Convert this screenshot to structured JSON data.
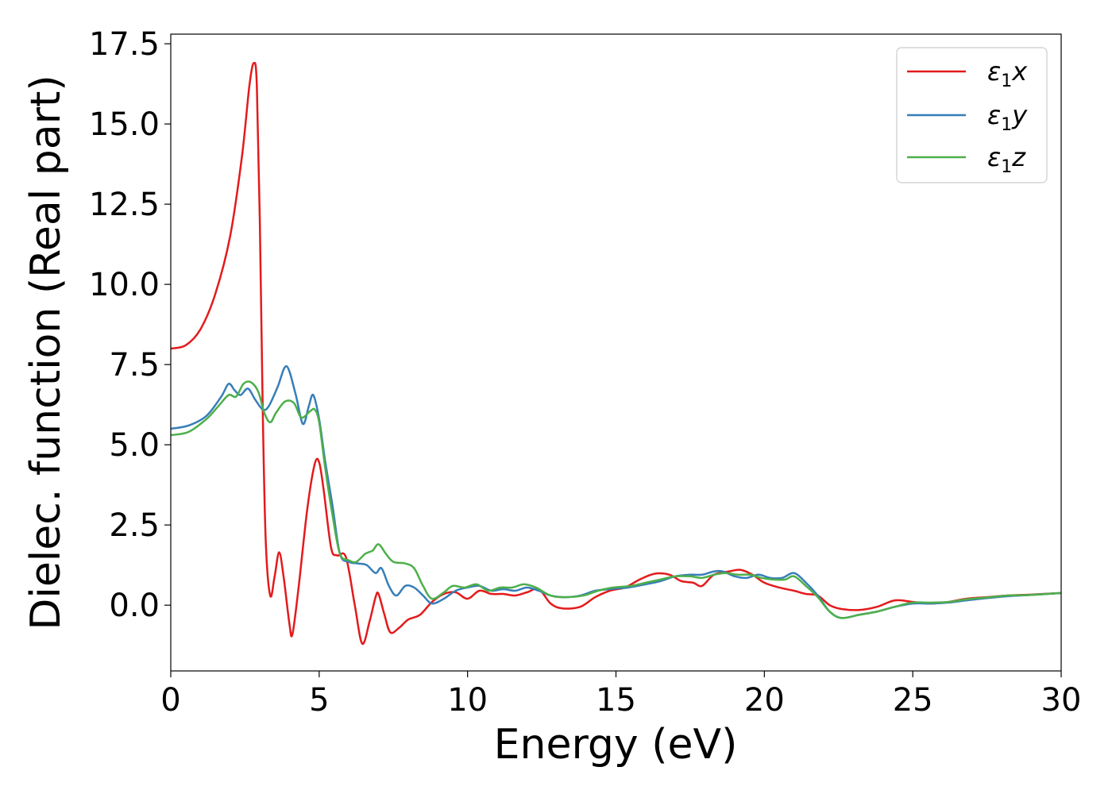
{
  "chart_data": {
    "type": "line",
    "xlabel": "Energy (eV)",
    "ylabel": "Dielec. function (Real part)",
    "xlim": [
      0,
      30
    ],
    "ylim": [
      -2.05,
      17.8
    ],
    "xticks": [
      "0",
      "5",
      "10",
      "15",
      "20",
      "25",
      "30"
    ],
    "yticks": [
      "0.0",
      "2.5",
      "5.0",
      "7.5",
      "10.0",
      "12.5",
      "15.0",
      "17.5"
    ],
    "grid": false,
    "legend_position": "top-right",
    "series": [
      {
        "name": "ε₁x",
        "legend_main": "ε",
        "legend_sub": "1",
        "legend_var": "x",
        "color": "#e41a1c",
        "points": [
          [
            0,
            8.0
          ],
          [
            0.5,
            8.1
          ],
          [
            1.0,
            8.6
          ],
          [
            1.5,
            9.7
          ],
          [
            2.0,
            11.5
          ],
          [
            2.4,
            14.0
          ],
          [
            2.65,
            16.2
          ],
          [
            2.8,
            16.9
          ],
          [
            2.9,
            16.2
          ],
          [
            3.0,
            12.0
          ],
          [
            3.1,
            6.0
          ],
          [
            3.2,
            2.0
          ],
          [
            3.35,
            0.3
          ],
          [
            3.5,
            0.9
          ],
          [
            3.65,
            1.65
          ],
          [
            3.8,
            0.9
          ],
          [
            4.0,
            -0.6
          ],
          [
            4.1,
            -0.9
          ],
          [
            4.3,
            0.5
          ],
          [
            4.6,
            3.0
          ],
          [
            4.85,
            4.4
          ],
          [
            5.0,
            4.45
          ],
          [
            5.15,
            3.6
          ],
          [
            5.4,
            1.8
          ],
          [
            5.6,
            1.55
          ],
          [
            5.9,
            1.5
          ],
          [
            6.2,
            0.0
          ],
          [
            6.45,
            -1.2
          ],
          [
            6.7,
            -0.5
          ],
          [
            6.9,
            0.25
          ],
          [
            7.0,
            0.35
          ],
          [
            7.2,
            -0.3
          ],
          [
            7.4,
            -0.85
          ],
          [
            7.7,
            -0.7
          ],
          [
            8.0,
            -0.45
          ],
          [
            8.4,
            -0.3
          ],
          [
            8.8,
            0.1
          ],
          [
            9.2,
            0.35
          ],
          [
            9.6,
            0.4
          ],
          [
            10.0,
            0.2
          ],
          [
            10.4,
            0.45
          ],
          [
            10.8,
            0.35
          ],
          [
            11.2,
            0.35
          ],
          [
            11.6,
            0.3
          ],
          [
            12.0,
            0.4
          ],
          [
            12.4,
            0.5
          ],
          [
            12.8,
            0.05
          ],
          [
            13.2,
            -0.1
          ],
          [
            13.8,
            -0.05
          ],
          [
            14.3,
            0.25
          ],
          [
            14.8,
            0.45
          ],
          [
            15.3,
            0.55
          ],
          [
            15.8,
            0.8
          ],
          [
            16.3,
            0.98
          ],
          [
            16.8,
            0.95
          ],
          [
            17.2,
            0.75
          ],
          [
            17.6,
            0.7
          ],
          [
            17.9,
            0.6
          ],
          [
            18.3,
            0.95
          ],
          [
            18.8,
            1.05
          ],
          [
            19.2,
            1.1
          ],
          [
            19.6,
            0.95
          ],
          [
            20.0,
            0.7
          ],
          [
            20.5,
            0.55
          ],
          [
            21.0,
            0.45
          ],
          [
            21.4,
            0.35
          ],
          [
            21.8,
            0.3
          ],
          [
            22.2,
            0.0
          ],
          [
            22.6,
            -0.12
          ],
          [
            23.2,
            -0.15
          ],
          [
            23.8,
            -0.05
          ],
          [
            24.4,
            0.15
          ],
          [
            25.0,
            0.1
          ],
          [
            25.6,
            0.05
          ],
          [
            26.2,
            0.1
          ],
          [
            26.8,
            0.2
          ],
          [
            27.5,
            0.25
          ],
          [
            28.2,
            0.3
          ],
          [
            29.0,
            0.33
          ],
          [
            30.0,
            0.38
          ]
        ]
      },
      {
        "name": "ε₁y",
        "legend_main": "ε",
        "legend_sub": "1",
        "legend_var": "y",
        "color": "#377eb8",
        "points": [
          [
            0,
            5.5
          ],
          [
            0.6,
            5.6
          ],
          [
            1.2,
            5.9
          ],
          [
            1.7,
            6.5
          ],
          [
            1.95,
            6.9
          ],
          [
            2.15,
            6.7
          ],
          [
            2.35,
            6.55
          ],
          [
            2.6,
            6.75
          ],
          [
            2.85,
            6.4
          ],
          [
            3.1,
            6.1
          ],
          [
            3.3,
            6.2
          ],
          [
            3.6,
            6.8
          ],
          [
            3.9,
            7.45
          ],
          [
            4.2,
            6.6
          ],
          [
            4.45,
            5.65
          ],
          [
            4.65,
            6.2
          ],
          [
            4.8,
            6.55
          ],
          [
            5.0,
            5.8
          ],
          [
            5.2,
            4.5
          ],
          [
            5.45,
            3.1
          ],
          [
            5.7,
            1.6
          ],
          [
            6.0,
            1.35
          ],
          [
            6.3,
            1.3
          ],
          [
            6.6,
            1.25
          ],
          [
            6.9,
            1.0
          ],
          [
            7.1,
            1.15
          ],
          [
            7.35,
            0.6
          ],
          [
            7.6,
            0.3
          ],
          [
            7.9,
            0.6
          ],
          [
            8.2,
            0.55
          ],
          [
            8.5,
            0.3
          ],
          [
            8.8,
            0.05
          ],
          [
            9.2,
            0.2
          ],
          [
            9.6,
            0.45
          ],
          [
            10.0,
            0.55
          ],
          [
            10.4,
            0.6
          ],
          [
            10.8,
            0.45
          ],
          [
            11.2,
            0.5
          ],
          [
            11.6,
            0.45
          ],
          [
            12.0,
            0.55
          ],
          [
            12.4,
            0.45
          ],
          [
            12.8,
            0.3
          ],
          [
            13.3,
            0.25
          ],
          [
            13.8,
            0.3
          ],
          [
            14.3,
            0.45
          ],
          [
            14.8,
            0.5
          ],
          [
            15.4,
            0.55
          ],
          [
            16.0,
            0.65
          ],
          [
            16.5,
            0.75
          ],
          [
            17.0,
            0.9
          ],
          [
            17.5,
            0.95
          ],
          [
            17.9,
            0.95
          ],
          [
            18.3,
            1.05
          ],
          [
            18.6,
            1.05
          ],
          [
            19.0,
            0.9
          ],
          [
            19.4,
            0.85
          ],
          [
            19.8,
            0.95
          ],
          [
            20.2,
            0.85
          ],
          [
            20.6,
            0.85
          ],
          [
            21.0,
            1.0
          ],
          [
            21.4,
            0.7
          ],
          [
            21.8,
            0.3
          ],
          [
            22.2,
            -0.2
          ],
          [
            22.6,
            -0.4
          ],
          [
            23.2,
            -0.3
          ],
          [
            23.8,
            -0.2
          ],
          [
            24.4,
            -0.05
          ],
          [
            25.0,
            0.05
          ],
          [
            25.6,
            0.05
          ],
          [
            26.2,
            0.08
          ],
          [
            26.8,
            0.15
          ],
          [
            27.5,
            0.22
          ],
          [
            28.2,
            0.28
          ],
          [
            29.0,
            0.32
          ],
          [
            30.0,
            0.38
          ]
        ]
      },
      {
        "name": "ε₁z",
        "legend_main": "ε",
        "legend_sub": "1",
        "legend_var": "z",
        "color": "#4daf4a",
        "points": [
          [
            0,
            5.3
          ],
          [
            0.6,
            5.4
          ],
          [
            1.2,
            5.8
          ],
          [
            1.6,
            6.2
          ],
          [
            1.95,
            6.55
          ],
          [
            2.2,
            6.5
          ],
          [
            2.45,
            6.9
          ],
          [
            2.7,
            6.95
          ],
          [
            2.95,
            6.65
          ],
          [
            3.15,
            6.0
          ],
          [
            3.35,
            5.7
          ],
          [
            3.55,
            6.0
          ],
          [
            3.85,
            6.35
          ],
          [
            4.15,
            6.3
          ],
          [
            4.4,
            5.85
          ],
          [
            4.7,
            6.05
          ],
          [
            4.85,
            6.1
          ],
          [
            5.0,
            5.7
          ],
          [
            5.2,
            4.3
          ],
          [
            5.45,
            2.8
          ],
          [
            5.7,
            1.6
          ],
          [
            6.0,
            1.4
          ],
          [
            6.25,
            1.35
          ],
          [
            6.55,
            1.6
          ],
          [
            6.8,
            1.7
          ],
          [
            7.0,
            1.9
          ],
          [
            7.25,
            1.6
          ],
          [
            7.5,
            1.35
          ],
          [
            7.9,
            1.3
          ],
          [
            8.2,
            1.15
          ],
          [
            8.5,
            0.6
          ],
          [
            8.8,
            0.2
          ],
          [
            9.2,
            0.4
          ],
          [
            9.5,
            0.6
          ],
          [
            9.9,
            0.55
          ],
          [
            10.3,
            0.65
          ],
          [
            10.7,
            0.45
          ],
          [
            11.1,
            0.55
          ],
          [
            11.5,
            0.55
          ],
          [
            11.9,
            0.65
          ],
          [
            12.3,
            0.55
          ],
          [
            12.8,
            0.3
          ],
          [
            13.3,
            0.25
          ],
          [
            13.9,
            0.3
          ],
          [
            14.4,
            0.45
          ],
          [
            14.9,
            0.55
          ],
          [
            15.5,
            0.6
          ],
          [
            16.0,
            0.7
          ],
          [
            16.5,
            0.8
          ],
          [
            17.0,
            0.9
          ],
          [
            17.5,
            0.9
          ],
          [
            17.9,
            0.85
          ],
          [
            18.3,
            0.95
          ],
          [
            18.7,
            1.0
          ],
          [
            19.1,
            0.95
          ],
          [
            19.5,
            0.95
          ],
          [
            19.9,
            0.85
          ],
          [
            20.3,
            0.8
          ],
          [
            20.7,
            0.8
          ],
          [
            21.0,
            0.9
          ],
          [
            21.4,
            0.6
          ],
          [
            21.8,
            0.25
          ],
          [
            22.2,
            -0.2
          ],
          [
            22.6,
            -0.4
          ],
          [
            23.2,
            -0.3
          ],
          [
            23.8,
            -0.2
          ],
          [
            24.4,
            -0.05
          ],
          [
            25.0,
            0.08
          ],
          [
            25.6,
            0.08
          ],
          [
            26.2,
            0.1
          ],
          [
            26.8,
            0.18
          ],
          [
            27.5,
            0.24
          ],
          [
            28.2,
            0.3
          ],
          [
            29.0,
            0.32
          ],
          [
            30.0,
            0.38
          ]
        ]
      }
    ]
  }
}
